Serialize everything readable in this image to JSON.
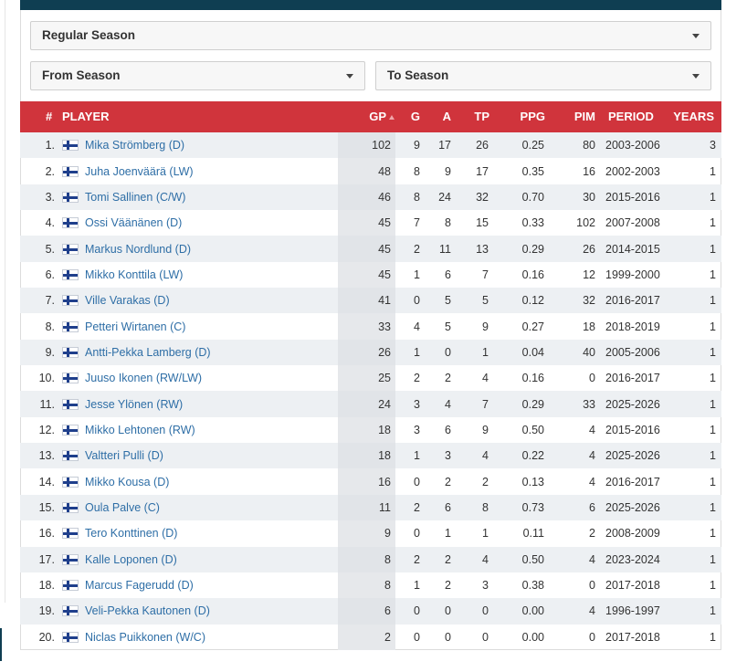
{
  "filters": {
    "season_type": "Regular Season",
    "from_season": "From Season",
    "to_season": "To Season"
  },
  "table": {
    "headers": {
      "rank": "#",
      "player": "PLAYER",
      "gp": "GP",
      "g": "G",
      "a": "A",
      "tp": "TP",
      "ppg": "PPG",
      "pim": "PIM",
      "period": "PERIOD",
      "years": "YEARS"
    },
    "sorted_by": "gp",
    "flag_icon": "finland-flag-icon",
    "rows": [
      {
        "rank": "1.",
        "player": "Mika Strömberg (D)",
        "gp": "102",
        "g": "9",
        "a": "17",
        "tp": "26",
        "ppg": "0.25",
        "pim": "80",
        "period": "2003-2006",
        "years": "3"
      },
      {
        "rank": "2.",
        "player": "Juha Joenväärä (LW)",
        "gp": "48",
        "g": "8",
        "a": "9",
        "tp": "17",
        "ppg": "0.35",
        "pim": "16",
        "period": "2002-2003",
        "years": "1"
      },
      {
        "rank": "3.",
        "player": "Tomi Sallinen (C/W)",
        "gp": "46",
        "g": "8",
        "a": "24",
        "tp": "32",
        "ppg": "0.70",
        "pim": "30",
        "period": "2015-2016",
        "years": "1"
      },
      {
        "rank": "4.",
        "player": "Ossi Väänänen (D)",
        "gp": "45",
        "g": "7",
        "a": "8",
        "tp": "15",
        "ppg": "0.33",
        "pim": "102",
        "period": "2007-2008",
        "years": "1"
      },
      {
        "rank": "5.",
        "player": "Markus Nordlund (D)",
        "gp": "45",
        "g": "2",
        "a": "11",
        "tp": "13",
        "ppg": "0.29",
        "pim": "26",
        "period": "2014-2015",
        "years": "1"
      },
      {
        "rank": "6.",
        "player": "Mikko Konttila (LW)",
        "gp": "45",
        "g": "1",
        "a": "6",
        "tp": "7",
        "ppg": "0.16",
        "pim": "12",
        "period": "1999-2000",
        "years": "1"
      },
      {
        "rank": "7.",
        "player": "Ville Varakas (D)",
        "gp": "41",
        "g": "0",
        "a": "5",
        "tp": "5",
        "ppg": "0.12",
        "pim": "32",
        "period": "2016-2017",
        "years": "1"
      },
      {
        "rank": "8.",
        "player": "Petteri Wirtanen (C)",
        "gp": "33",
        "g": "4",
        "a": "5",
        "tp": "9",
        "ppg": "0.27",
        "pim": "18",
        "period": "2018-2019",
        "years": "1"
      },
      {
        "rank": "9.",
        "player": "Antti-Pekka Lamberg (D)",
        "gp": "26",
        "g": "1",
        "a": "0",
        "tp": "1",
        "ppg": "0.04",
        "pim": "40",
        "period": "2005-2006",
        "years": "1"
      },
      {
        "rank": "10.",
        "player": "Juuso Ikonen (RW/LW)",
        "gp": "25",
        "g": "2",
        "a": "2",
        "tp": "4",
        "ppg": "0.16",
        "pim": "0",
        "period": "2016-2017",
        "years": "1"
      },
      {
        "rank": "11.",
        "player": "Jesse Ylönen (RW)",
        "gp": "24",
        "g": "3",
        "a": "4",
        "tp": "7",
        "ppg": "0.29",
        "pim": "33",
        "period": "2025-2026",
        "years": "1"
      },
      {
        "rank": "12.",
        "player": "Mikko Lehtonen (RW)",
        "gp": "18",
        "g": "3",
        "a": "6",
        "tp": "9",
        "ppg": "0.50",
        "pim": "4",
        "period": "2015-2016",
        "years": "1"
      },
      {
        "rank": "13.",
        "player": "Valtteri Pulli (D)",
        "gp": "18",
        "g": "1",
        "a": "3",
        "tp": "4",
        "ppg": "0.22",
        "pim": "4",
        "period": "2025-2026",
        "years": "1"
      },
      {
        "rank": "14.",
        "player": "Mikko Kousa (D)",
        "gp": "16",
        "g": "0",
        "a": "2",
        "tp": "2",
        "ppg": "0.13",
        "pim": "4",
        "period": "2016-2017",
        "years": "1"
      },
      {
        "rank": "15.",
        "player": "Oula Palve (C)",
        "gp": "11",
        "g": "2",
        "a": "6",
        "tp": "8",
        "ppg": "0.73",
        "pim": "6",
        "period": "2025-2026",
        "years": "1"
      },
      {
        "rank": "16.",
        "player": "Tero Konttinen (D)",
        "gp": "9",
        "g": "0",
        "a": "1",
        "tp": "1",
        "ppg": "0.11",
        "pim": "2",
        "period": "2008-2009",
        "years": "1"
      },
      {
        "rank": "17.",
        "player": "Kalle Loponen (D)",
        "gp": "8",
        "g": "2",
        "a": "2",
        "tp": "4",
        "ppg": "0.50",
        "pim": "4",
        "period": "2023-2024",
        "years": "1"
      },
      {
        "rank": "18.",
        "player": "Marcus Fagerudd (D)",
        "gp": "8",
        "g": "1",
        "a": "2",
        "tp": "3",
        "ppg": "0.38",
        "pim": "0",
        "period": "2017-2018",
        "years": "1"
      },
      {
        "rank": "19.",
        "player": "Veli-Pekka Kautonen (D)",
        "gp": "6",
        "g": "0",
        "a": "0",
        "tp": "0",
        "ppg": "0.00",
        "pim": "4",
        "period": "1996-1997",
        "years": "1"
      },
      {
        "rank": "20.",
        "player": "Niclas Puikkonen (W/C)",
        "gp": "2",
        "g": "0",
        "a": "0",
        "tp": "0",
        "ppg": "0.00",
        "pim": "0",
        "period": "2017-2018",
        "years": "1"
      }
    ]
  },
  "colors": {
    "header_red": "#d0343c",
    "top_bar": "#0f3e52",
    "link_blue": "#2e6ea6",
    "stripe": "#edf0f3"
  }
}
